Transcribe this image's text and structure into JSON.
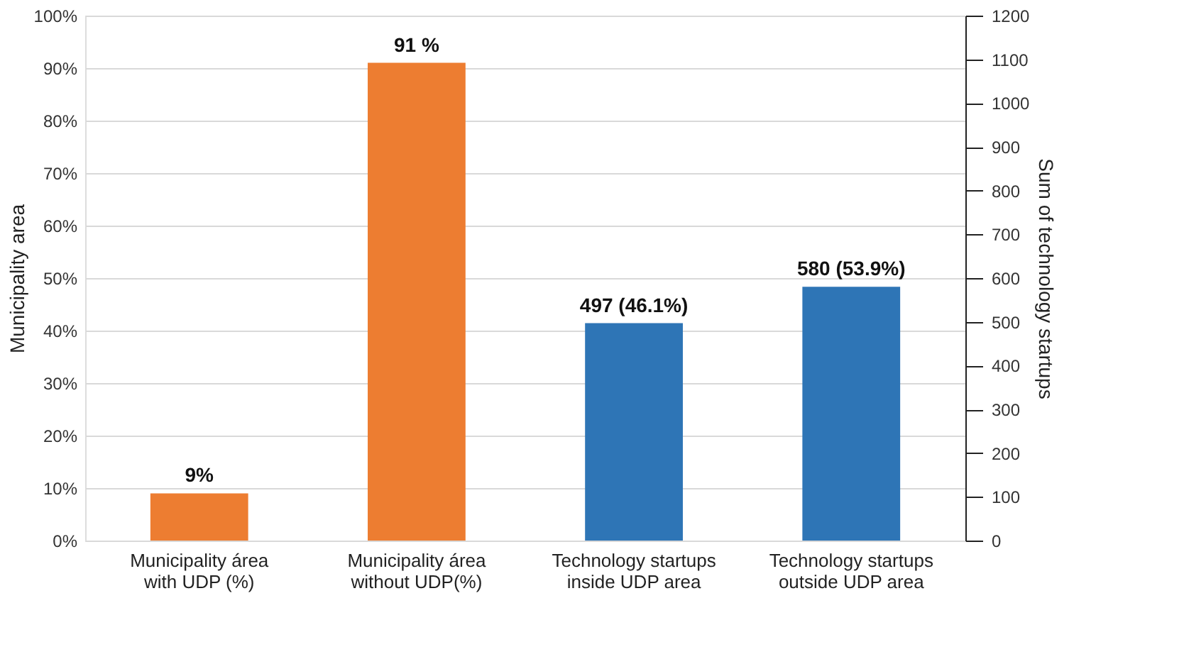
{
  "chart_data": {
    "type": "bar",
    "categories": [
      "Municipality área with UDP (%)",
      "Municipality área without UDP(%)",
      "Technology startups inside UDP area",
      "Technology startups outside UDP area"
    ],
    "series": [
      {
        "color": "#ed7d31",
        "values": [
          9,
          91,
          null,
          null
        ],
        "value_labels": [
          "9%",
          "91 %",
          null,
          null
        ]
      },
      {
        "color": "#2e75b6",
        "axis": "y2",
        "values": [
          null,
          null,
          497,
          580
        ],
        "value_labels": [
          null,
          null,
          "497 (46.1%)",
          "580 (53.9%)"
        ]
      }
    ],
    "ylabel": "Municipality area",
    "y2label": "Sum of technology startups",
    "ylim": [
      0,
      100
    ],
    "yticks": [
      {
        "value": 0,
        "label": "0%"
      },
      {
        "value": 10,
        "label": "10%"
      },
      {
        "value": 20,
        "label": "20%"
      },
      {
        "value": 30,
        "label": "30%"
      },
      {
        "value": 40,
        "label": "40%"
      },
      {
        "value": 50,
        "label": "50%"
      },
      {
        "value": 60,
        "label": "60%"
      },
      {
        "value": 70,
        "label": "70%"
      },
      {
        "value": 80,
        "label": "80%"
      },
      {
        "value": 90,
        "label": "90%"
      },
      {
        "value": 100,
        "label": "100%"
      }
    ],
    "y2lim": [
      0,
      1200
    ],
    "y2ticks": [
      0,
      100,
      200,
      300,
      400,
      500,
      600,
      700,
      800,
      900,
      1000,
      1100,
      1200
    ],
    "grid": "y"
  }
}
